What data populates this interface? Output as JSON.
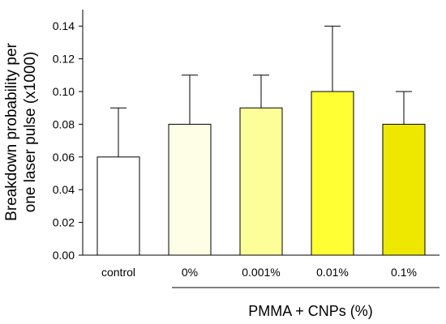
{
  "chart_data": {
    "type": "bar",
    "categories": [
      "control",
      "0%",
      "0.001%",
      "0.01%",
      "0.1%"
    ],
    "values": [
      0.06,
      0.08,
      0.09,
      0.1,
      0.08
    ],
    "error_upper": [
      0.09,
      0.11,
      0.11,
      0.14,
      0.1
    ],
    "bar_colors": [
      "#ffffff",
      "#fefee6",
      "#fefe99",
      "#ffff33",
      "#eee800"
    ],
    "ylabel_line1": "Breakdown probability per",
    "ylabel_line2": "one laser pulse (x1000)",
    "group_label": "PMMA + CNPs (%)",
    "ylim": [
      0,
      0.15
    ],
    "yticks": [
      "0.00",
      "0.02",
      "0.04",
      "0.06",
      "0.08",
      "0.10",
      "0.12",
      "0.14"
    ],
    "ytick_values": [
      0,
      0.02,
      0.04,
      0.06,
      0.08,
      0.1,
      0.12,
      0.14
    ],
    "grid": false,
    "legend": "none"
  }
}
